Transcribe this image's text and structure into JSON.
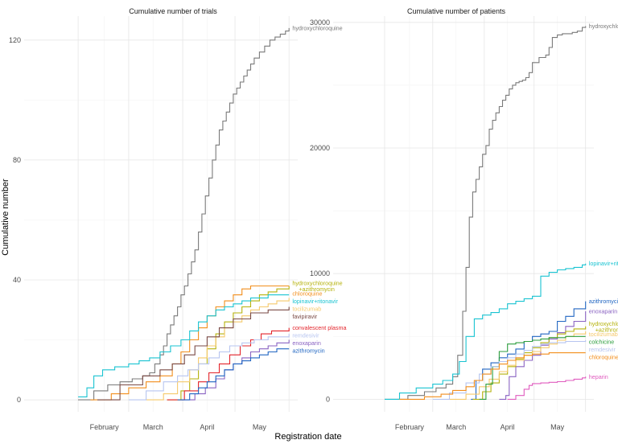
{
  "figure": {
    "xlabel": "Registration date",
    "ylabel": "Cumulative number"
  },
  "chart_data": [
    {
      "type": "line",
      "title": "Cumulative number of trials",
      "xlabel": "Registration date",
      "ylabel": "Cumulative number",
      "xlim": [
        0,
        157
      ],
      "ylim": [
        -4,
        128
      ],
      "yticks": [
        0,
        40,
        80,
        120
      ],
      "xticks": [
        {
          "label": "February",
          "x": 46
        },
        {
          "label": "March",
          "x": 74
        },
        {
          "label": "April",
          "x": 105
        },
        {
          "label": "May",
          "x": 135
        }
      ],
      "grid_major_x": [
        31,
        60,
        91,
        121,
        152
      ],
      "series": [
        {
          "name": "hydroxychloroquine",
          "color": "#7a7a7a",
          "x": [
            31,
            40,
            48,
            55,
            62,
            68,
            72,
            75,
            78,
            80,
            82,
            84,
            86,
            88,
            90,
            92,
            94,
            96,
            98,
            100,
            102,
            104,
            106,
            108,
            110,
            112,
            114,
            116,
            118,
            120,
            122,
            124,
            126,
            128,
            130,
            132,
            135,
            138,
            141,
            144,
            147,
            150,
            152
          ],
          "y": [
            0,
            3,
            5,
            6,
            7,
            8,
            9,
            12,
            15,
            18,
            22,
            25,
            28,
            31,
            35,
            38,
            42,
            46,
            50,
            56,
            62,
            68,
            74,
            80,
            85,
            90,
            93,
            96,
            99,
            102,
            104,
            106,
            108,
            110,
            112,
            114,
            116,
            118,
            120,
            121,
            122,
            123,
            124
          ]
        },
        {
          "name": "hydroxychloroquine +azithromycin",
          "color": "#b5b20c",
          "x": [
            82,
            90,
            95,
            100,
            105,
            110,
            115,
            120,
            125,
            130,
            135,
            140,
            145,
            152
          ],
          "y": [
            0,
            3,
            7,
            12,
            17,
            22,
            26,
            29,
            31,
            33,
            35,
            36,
            37,
            38
          ]
        },
        {
          "name": "chloroquine",
          "color": "#f28e1c",
          "x": [
            38,
            50,
            60,
            70,
            78,
            85,
            90,
            95,
            100,
            105,
            110,
            115,
            120,
            125,
            130,
            138,
            152
          ],
          "y": [
            0,
            2,
            4,
            6,
            8,
            12,
            16,
            20,
            24,
            28,
            31,
            33,
            35,
            37,
            38,
            38,
            38
          ]
        },
        {
          "name": "lopinavir+ritonavir",
          "color": "#19c3d1",
          "x": [
            31,
            36,
            40,
            45,
            52,
            60,
            66,
            72,
            78,
            84,
            90,
            95,
            100,
            105,
            110,
            115,
            120,
            125,
            130,
            140,
            152
          ],
          "y": [
            1,
            4,
            8,
            10,
            11,
            12,
            13,
            14,
            16,
            18,
            20,
            23,
            26,
            28,
            30,
            31,
            32,
            33,
            34,
            35,
            35
          ]
        },
        {
          "name": "tocilizumab",
          "color": "#f5c96b",
          "x": [
            70,
            80,
            88,
            95,
            100,
            105,
            110,
            115,
            120,
            125,
            130,
            135,
            140,
            145,
            152
          ],
          "y": [
            0,
            2,
            6,
            10,
            14,
            18,
            21,
            24,
            26,
            28,
            30,
            31,
            32,
            33,
            34
          ]
        },
        {
          "name": "favipiravir",
          "color": "#7a4a45",
          "x": [
            42,
            55,
            68,
            78,
            85,
            92,
            98,
            105,
            112,
            120,
            130,
            140,
            152
          ],
          "y": [
            0,
            5,
            8,
            10,
            12,
            15,
            18,
            21,
            24,
            27,
            29,
            30,
            31
          ]
        },
        {
          "name": "convalescent plasma",
          "color": "#e3242b",
          "x": [
            82,
            92,
            100,
            106,
            112,
            118,
            124,
            130,
            136,
            142,
            152
          ],
          "y": [
            0,
            3,
            6,
            9,
            12,
            15,
            18,
            20,
            22,
            23,
            24
          ]
        },
        {
          "name": "remdesivir",
          "color": "#b7c5f0",
          "x": [
            60,
            70,
            80,
            88,
            94,
            100,
            106,
            112,
            118,
            125,
            132,
            140,
            152
          ],
          "y": [
            0,
            3,
            6,
            8,
            10,
            12,
            14,
            16,
            18,
            19,
            20,
            21,
            22
          ]
        },
        {
          "name": "enoxaparin",
          "color": "#8a63c2",
          "x": [
            90,
            98,
            104,
            110,
            115,
            120,
            125,
            130,
            135,
            140,
            145,
            152
          ],
          "y": [
            0,
            2,
            4,
            7,
            10,
            12,
            14,
            16,
            17,
            18,
            19,
            20
          ]
        },
        {
          "name": "azithromycin",
          "color": "#2166c2",
          "x": [
            88,
            95,
            100,
            105,
            110,
            115,
            120,
            125,
            130,
            135,
            140,
            145,
            152
          ],
          "y": [
            0,
            2,
            4,
            6,
            8,
            10,
            12,
            13,
            14,
            15,
            16,
            17,
            17
          ]
        }
      ]
    },
    {
      "type": "line",
      "title": "Cumulative number of patients",
      "xlabel": "Registration date",
      "ylabel": "Cumulative number",
      "xlim": [
        0,
        157
      ],
      "ylim": [
        -1000,
        30500
      ],
      "yticks": [
        0,
        10000,
        20000,
        30000
      ],
      "xticks": [
        {
          "label": "February",
          "x": 46
        },
        {
          "label": "March",
          "x": 74
        },
        {
          "label": "April",
          "x": 105
        },
        {
          "label": "May",
          "x": 135
        }
      ],
      "grid_major_x": [
        31,
        60,
        91,
        121,
        152
      ],
      "series": [
        {
          "name": "hydroxychloroquine",
          "color": "#7a7a7a",
          "x": [
            31,
            45,
            55,
            62,
            68,
            72,
            75,
            78,
            80,
            82,
            84,
            86,
            88,
            90,
            92,
            94,
            96,
            98,
            100,
            102,
            104,
            106,
            108,
            110,
            112,
            114,
            116,
            118,
            120,
            124,
            128,
            130,
            132,
            135,
            138,
            141,
            144,
            147,
            150,
            152
          ],
          "y": [
            0,
            300,
            600,
            900,
            1200,
            1800,
            3500,
            7000,
            10500,
            14500,
            16500,
            17500,
            18500,
            19500,
            20200,
            21500,
            22200,
            22800,
            23300,
            23800,
            24200,
            24700,
            25000,
            25200,
            25300,
            25400,
            25600,
            26000,
            26800,
            27200,
            27400,
            28000,
            28800,
            29000,
            29100,
            29100,
            29200,
            29300,
            29600,
            29700
          ]
        },
        {
          "name": "lopinavir+ritonavir",
          "color": "#19c3d1",
          "x": [
            31,
            40,
            50,
            60,
            66,
            72,
            76,
            80,
            85,
            90,
            95,
            100,
            105,
            110,
            115,
            120,
            125,
            130,
            135,
            140,
            145,
            150,
            152
          ],
          "y": [
            0,
            500,
            900,
            1200,
            1500,
            2000,
            3000,
            5000,
            6400,
            6700,
            6900,
            7200,
            7600,
            7800,
            8000,
            8200,
            9800,
            10100,
            10300,
            10400,
            10500,
            10700,
            10800
          ]
        },
        {
          "name": "azithromycin",
          "color": "#2166c2",
          "x": [
            83,
            86,
            90,
            95,
            100,
            105,
            110,
            115,
            120,
            125,
            130,
            135,
            140,
            145,
            152
          ],
          "y": [
            0,
            1500,
            2400,
            2900,
            3300,
            3600,
            4000,
            4600,
            5000,
            5200,
            5400,
            6200,
            6600,
            7200,
            7800
          ]
        },
        {
          "name": "enoxaparin",
          "color": "#8a63c2",
          "x": [
            100,
            104,
            106,
            110,
            115,
            120,
            125,
            130,
            135,
            140,
            145,
            152
          ],
          "y": [
            0,
            300,
            1800,
            2600,
            3100,
            3500,
            4300,
            4800,
            5300,
            5800,
            6200,
            7000
          ]
        },
        {
          "name": "hydroxychloroquine +azithromycin",
          "color": "#b5b20c",
          "x": [
            84,
            90,
            95,
            100,
            105,
            110,
            115,
            120,
            125,
            130,
            135,
            140,
            145,
            152
          ],
          "y": [
            0,
            600,
            1300,
            2000,
            2600,
            3200,
            3700,
            4100,
            4500,
            4900,
            5200,
            5400,
            5600,
            5800
          ]
        },
        {
          "name": "tocilizumab",
          "color": "#f5c96b",
          "x": [
            70,
            80,
            88,
            94,
            100,
            105,
            110,
            115,
            120,
            125,
            130,
            135,
            140,
            145,
            152
          ],
          "y": [
            0,
            400,
            1000,
            1600,
            2200,
            2700,
            3100,
            3500,
            3800,
            4100,
            4400,
            4700,
            5000,
            5200,
            5400
          ]
        },
        {
          "name": "colchicine",
          "color": "#2e9e3f",
          "x": [
            88,
            92,
            96,
            100,
            105,
            110,
            115,
            120,
            125,
            130,
            135,
            140,
            145,
            152
          ],
          "y": [
            0,
            1200,
            2600,
            3800,
            4400,
            4500,
            4600,
            4700,
            4800,
            4900,
            4900,
            5000,
            5000,
            5000
          ]
        },
        {
          "name": "remdesivir",
          "color": "#b7c5f0",
          "x": [
            60,
            70,
            80,
            88,
            95,
            100,
            105,
            110,
            115,
            120,
            125,
            130,
            140,
            152
          ],
          "y": [
            0,
            500,
            1300,
            2000,
            2600,
            3000,
            3300,
            3600,
            3900,
            4200,
            4400,
            4500,
            4600,
            4700
          ]
        },
        {
          "name": "chloroquine",
          "color": "#f28e1c",
          "x": [
            40,
            55,
            65,
            72,
            80,
            85,
            90,
            95,
            100,
            105,
            110,
            115,
            120,
            130,
            140,
            152
          ],
          "y": [
            0,
            200,
            400,
            700,
            1000,
            1500,
            2000,
            2400,
            2800,
            3100,
            3300,
            3500,
            3600,
            3700,
            3700,
            3700
          ]
        },
        {
          "name": "heparin",
          "color": "#e05cbf",
          "x": [
            105,
            110,
            115,
            118,
            120,
            125,
            130,
            135,
            140,
            145,
            150,
            152
          ],
          "y": [
            0,
            300,
            800,
            1100,
            1250,
            1300,
            1350,
            1400,
            1500,
            1600,
            1700,
            1800
          ]
        }
      ]
    }
  ]
}
